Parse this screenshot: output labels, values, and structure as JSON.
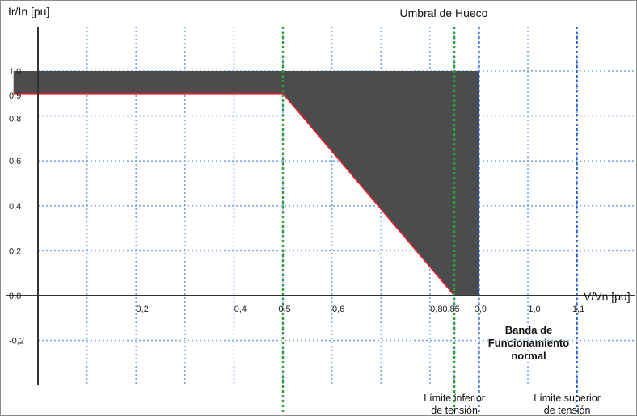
{
  "chart_data": {
    "type": "area",
    "title": "Umbral de Hueco",
    "xlabel": "V/Vn [pu]",
    "ylabel": "Ir/In [pu]",
    "xlim": [
      -0.05,
      1.1
    ],
    "ylim": [
      -0.35,
      1.1
    ],
    "x_ticks": [
      {
        "value": 0.2,
        "label": "0,2"
      },
      {
        "value": 0.4,
        "label": "0,4"
      },
      {
        "value": 0.5,
        "label": "0,5"
      },
      {
        "value": 0.6,
        "label": "0,6"
      },
      {
        "value": 0.8,
        "label": "0,8"
      },
      {
        "value": 0.85,
        "label": "0,85"
      },
      {
        "value": 0.9,
        "label": "0,9"
      },
      {
        "value": 1.0,
        "label": "1,0"
      },
      {
        "value": 1.1,
        "label": "1,1"
      }
    ],
    "y_ticks": [
      {
        "value": 1.0,
        "label": "1,0"
      },
      {
        "value": 0.9,
        "label": "0,9"
      },
      {
        "value": 0.8,
        "label": "0,8"
      },
      {
        "value": 0.6,
        "label": "0,6"
      },
      {
        "value": 0.4,
        "label": "0,4"
      },
      {
        "value": 0.2,
        "label": "0,2"
      },
      {
        "value": 0.0,
        "label": "0,0"
      },
      {
        "value": -0.2,
        "label": "-0,2"
      }
    ],
    "grid_x": [
      0.0,
      0.1,
      0.2,
      0.3,
      0.4,
      0.5,
      0.6,
      0.7,
      0.8,
      0.85,
      0.9,
      1.0,
      1.1
    ],
    "grid_y": [
      1.0,
      0.8,
      0.6,
      0.4,
      0.2,
      -0.2
    ],
    "grid": true,
    "region": {
      "upper_y": 1.0,
      "lower_curve": [
        {
          "x": -0.05,
          "y": 0.9
        },
        {
          "x": 0.5,
          "y": 0.9
        },
        {
          "x": 0.85,
          "y": 0.0
        },
        {
          "x": 0.9,
          "y": 0.0
        }
      ],
      "x_end": 0.9,
      "fill_color": "#4b4c4e",
      "edge_color": "#e8202a"
    },
    "vertical_lines": [
      {
        "x": 0.5,
        "color": "#2f9e3b",
        "label": ""
      },
      {
        "x": 0.85,
        "color": "#2f9e3b",
        "label_lines": [
          "Límite inferior",
          "de tensión"
        ]
      },
      {
        "x": 0.9,
        "color": "#2a62c8",
        "label": ""
      },
      {
        "x": 1.1,
        "color": "#2a62c8",
        "label_lines": [
          "Límite superior",
          "de tensión"
        ]
      }
    ],
    "band_label_lines": [
      "Banda de",
      "Funcionamiento",
      "normal"
    ]
  }
}
